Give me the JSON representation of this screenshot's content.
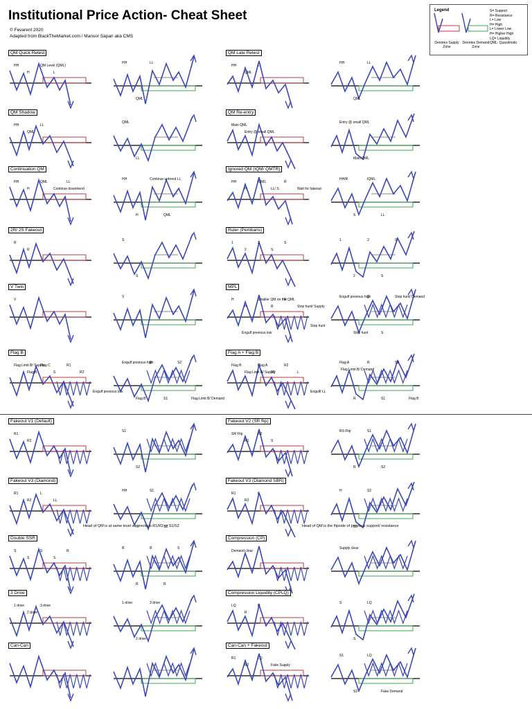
{
  "header": {
    "title": "Institutional Price Action- Cheat Sheet",
    "copyright": "© Fevarent 2020",
    "adapted": "Adapted from BlackTheMarket.com / Mansor Sapari aka CMS"
  },
  "legend": {
    "title": "Legend",
    "items": [
      "S= Support",
      "R= Resistance",
      "L= Low",
      "H= High",
      "L= Lower Low",
      "H= Higher High",
      "LQ= Liquidity",
      "QML: Quasimodo"
    ],
    "supply_caption": "Denotes Supply Zone",
    "demand_caption": "Denotes Demand Zone"
  },
  "colors": {
    "line": "#3a47b5",
    "supply": "#c0393b",
    "demand": "#3aa64a",
    "level": "#000000",
    "grey": "#8a8a8a",
    "pink": "#c060c0",
    "green_candle": "#2fa83a",
    "red_candle": "#d93030"
  },
  "sections": [
    {
      "label": "QM Quick Retest",
      "a": [
        "HH",
        "H",
        "QM Level (QML)",
        "L"
      ],
      "b": [
        "HH",
        "QML",
        "LL"
      ]
    },
    {
      "label": "QM Late Retest",
      "a": [
        "HH",
        "QML",
        "L"
      ],
      "b": [
        "HH",
        "QML",
        "LL"
      ]
    },
    {
      "label": "QM Shadow",
      "a": [
        "HH",
        "QML",
        "LL"
      ],
      "b": [
        "QML",
        "LL"
      ]
    },
    {
      "label": "QM Re-entry",
      "a": [
        "Main QML",
        "Entry @ small QML"
      ],
      "b": [
        "Entry @ small QML",
        "Main QML"
      ]
    },
    {
      "label": "Continuation QM",
      "a": [
        "HH",
        "H",
        "QML",
        "Continue downtrend",
        "LL"
      ],
      "b": [
        "HH",
        "H",
        "Continue uptrend",
        "QML",
        "LL"
      ]
    },
    {
      "label": "Ignored QM (IQM/ QMTR)",
      "a": [
        "HH",
        "H",
        "IQML",
        "LL/ S",
        "R",
        "Wait for fakeout"
      ],
      "b": [
        "HH/R",
        "S",
        "IQML",
        "LL"
      ]
    },
    {
      "label": "2R/ 2S Fakeout",
      "a": [
        "R",
        "R"
      ],
      "b": [
        "S",
        "S"
      ]
    },
    {
      "label": "Ruler (Pembaris)",
      "a": [
        "1",
        "2",
        "3",
        "S",
        "S"
      ],
      "b": [
        "1",
        "2",
        "3",
        "S",
        "S"
      ]
    },
    {
      "label": "V Twin",
      "a": [
        "V"
      ],
      "b": [
        "V"
      ]
    },
    {
      "label": "MPL",
      "a": [
        "H",
        "H",
        "Smaller QM on the QML",
        "R",
        "R",
        "Stop hunt/ Supply",
        "Stop hunt",
        "Engulf previous low"
      ],
      "b": [
        "Engulf previous high",
        "Stop hunt",
        "S",
        "S",
        "Stop hunt/ Demand"
      ]
    },
    {
      "label": "Flag B",
      "a": [
        "Flag Limit B/ Supply",
        "Flag B",
        "Flag C",
        "S",
        "R1",
        "R2",
        "Engulf previous low"
      ],
      "b": [
        "Engulf previous high",
        "Flag B",
        "R",
        "S1",
        "S2",
        "Flag Limit B/ Demand"
      ]
    },
    {
      "label": "Flag A + Flag B",
      "a": [
        "Flag B",
        "Flag Limit B/ Supply",
        "Flag A",
        "R1",
        "R2",
        "L",
        "Engulf/ LL"
      ],
      "b": [
        "Flag A",
        "R",
        "R",
        "S1",
        "S2",
        "Flag B",
        "Flag Limit B/ Demand"
      ]
    },
    {
      "label": "Fakeout V1 (Default)",
      "a": [
        "R1",
        "R2"
      ],
      "b": [
        "S1",
        "S2"
      ]
    },
    {
      "label": "Fakeout V2 (SR flip)",
      "a": [
        "SR Flip",
        "R1",
        "R2",
        "S"
      ],
      "b": [
        "RS Flip",
        "R",
        "S1",
        "S2"
      ]
    },
    {
      "label": "Fakeout V3 (Diamond)",
      "a": [
        "R1",
        "R2",
        "L",
        "LL"
      ],
      "b": [
        "HH",
        "H",
        "S1",
        "S2"
      ]
    },
    {
      "label": "Fakeout V3 (Diamond SBR)",
      "a": [
        "R1",
        "R2",
        "L"
      ],
      "b": [
        "H",
        "S1",
        "S2"
      ]
    },
    {
      "label": "Double SSR",
      "a": [
        "S",
        "S",
        "S",
        "S",
        "R"
      ],
      "b": [
        "R",
        "R",
        "R",
        "R",
        "S"
      ]
    },
    {
      "label": "Compression (CP)",
      "a": [
        "Demand clear"
      ],
      "b": [
        "Supply clear"
      ]
    },
    {
      "label": "3 Drive",
      "a": [
        "1 drive",
        "2 drive",
        "3 drive"
      ],
      "b": [
        "1 drive",
        "2 drive",
        "3 drive"
      ]
    },
    {
      "label": "Compression Liquidity (CPLQ)",
      "a": [
        "LQ",
        "R",
        "R"
      ],
      "b": [
        "S",
        "S",
        "LQ"
      ]
    },
    {
      "label": "Can-Can",
      "a": [],
      "b": []
    },
    {
      "label": "Can-Can + Fakeout",
      "a": [
        "R1",
        "R2",
        "LQ",
        "Fake Supply"
      ],
      "b": [
        "S1",
        "S2",
        "LQ",
        "Fake Demand"
      ]
    }
  ],
  "notes": {
    "diamond": "Head of QM is at same level as previous R1/R2 or S1/S2",
    "diamond_sbr": "Head of QM is the flipside of previous support/ resistance"
  }
}
